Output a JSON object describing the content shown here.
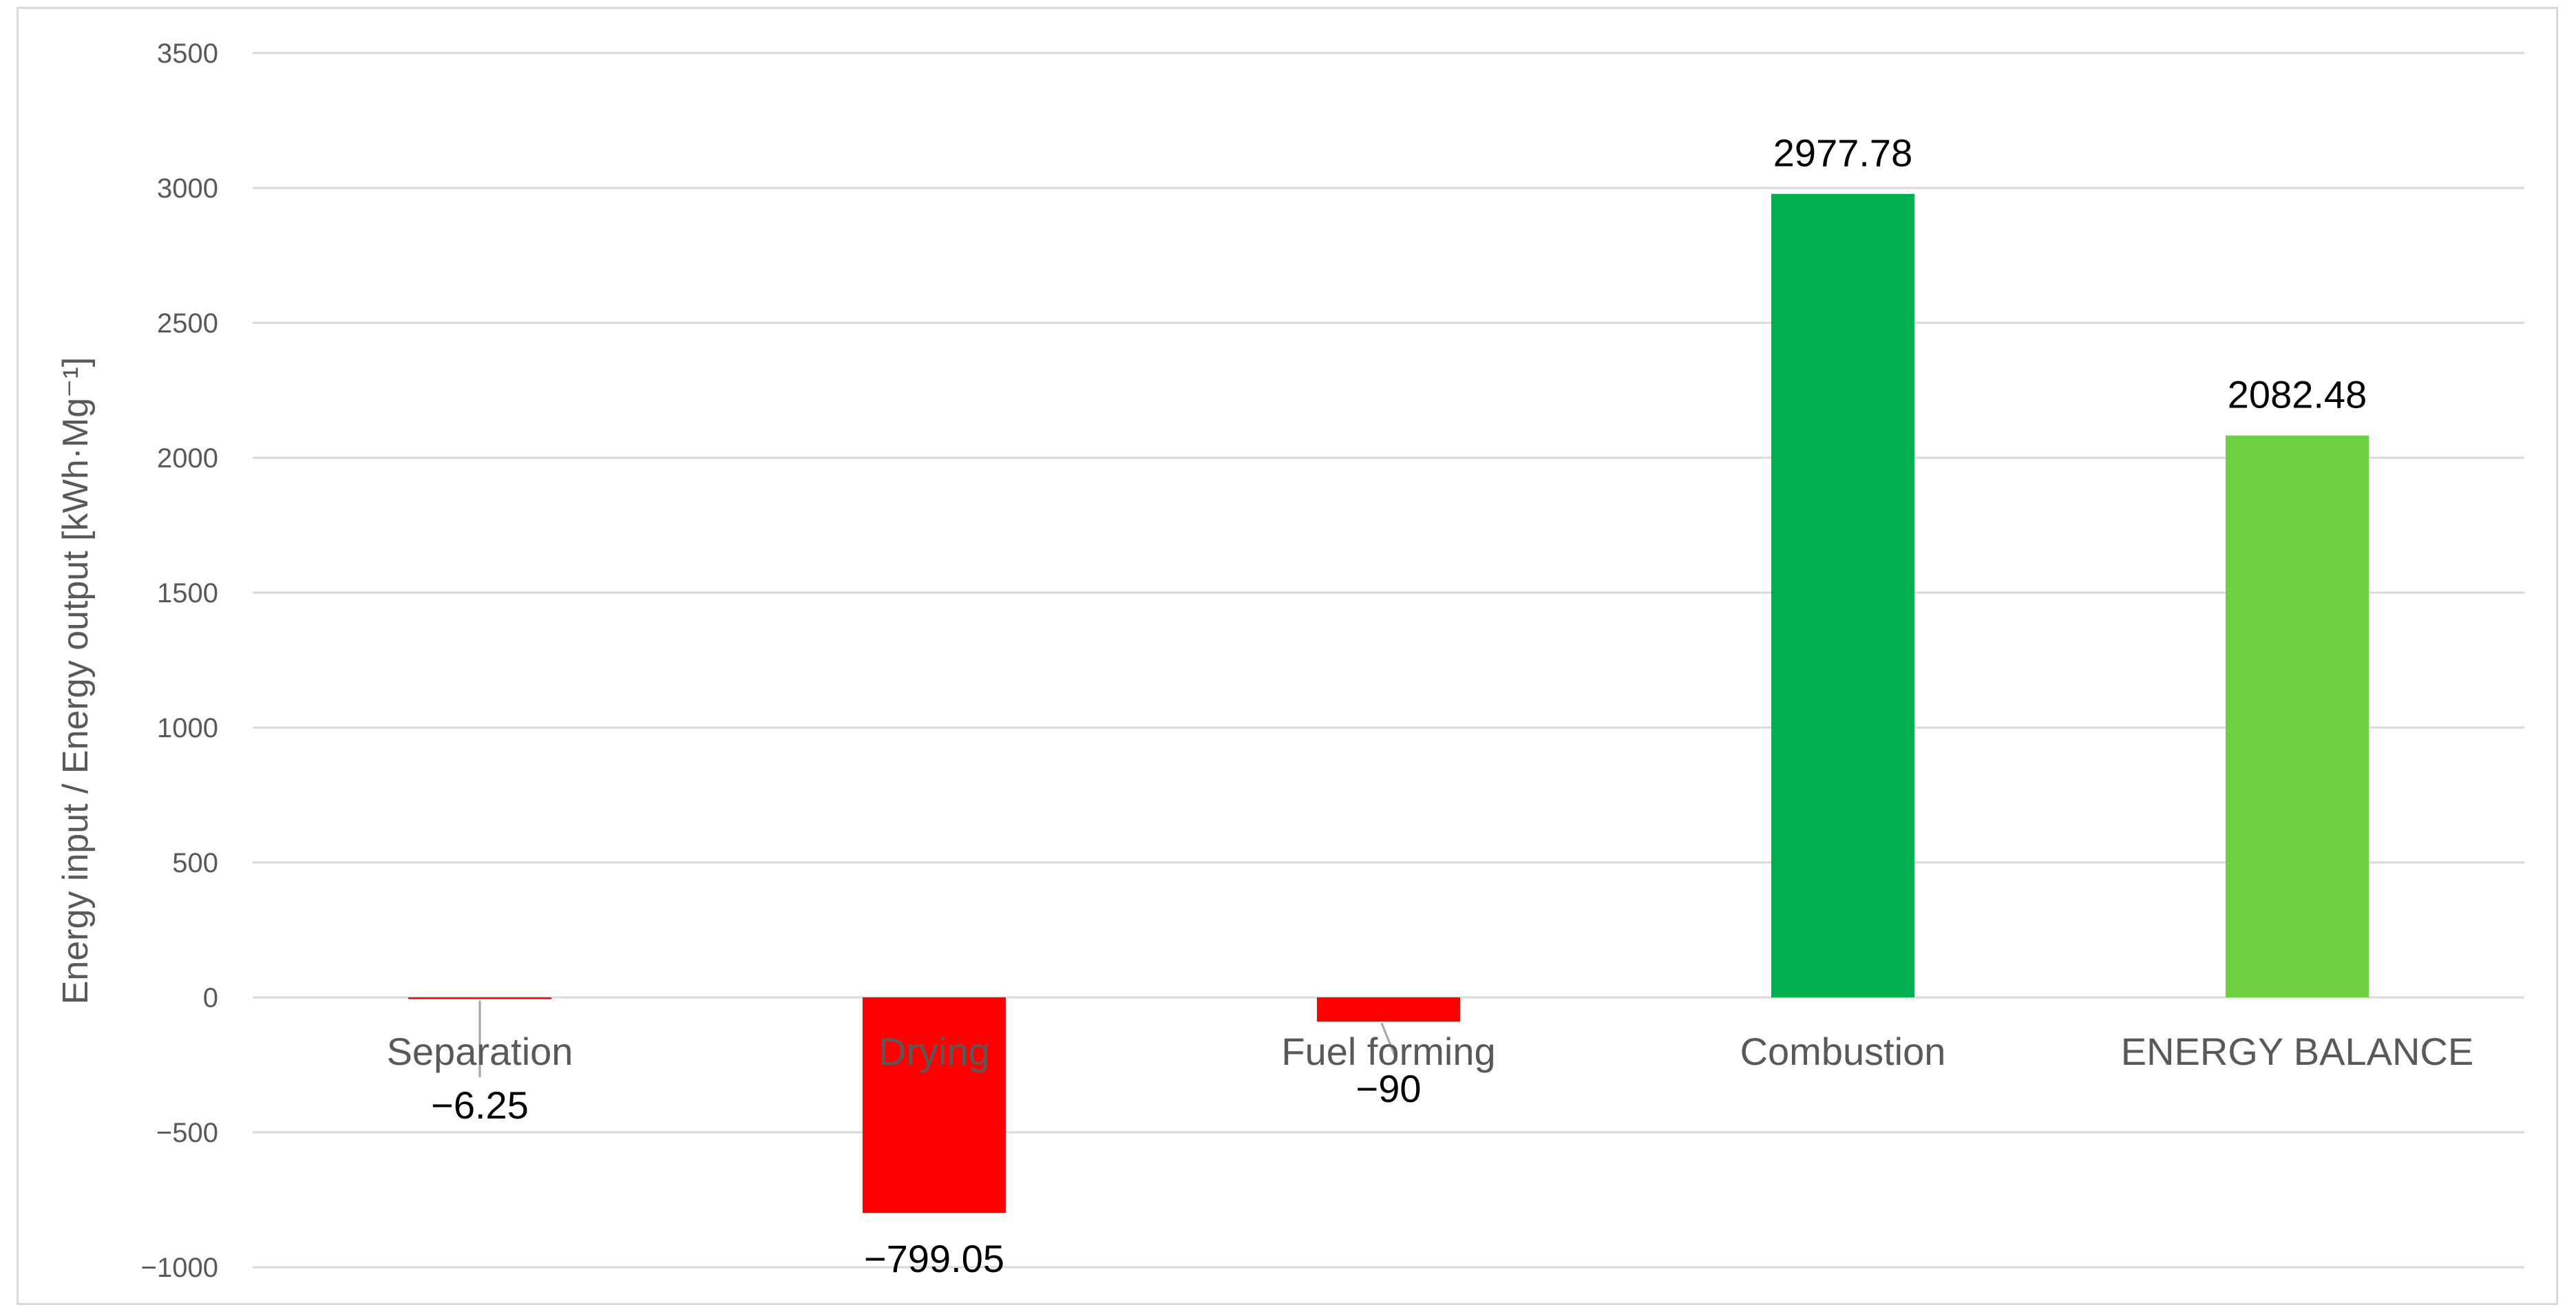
{
  "chart_data": {
    "type": "bar",
    "title": "",
    "xlabel": "",
    "ylabel": "Energy input / Energy output  [kWh·Mg⁻¹]",
    "categories": [
      "Separation",
      "Drying",
      "Fuel forming",
      "Combustion",
      "ENERGY BALANCE"
    ],
    "values": [
      -6.25,
      -799.05,
      -90,
      2977.78,
      2082.48
    ],
    "data_labels": [
      "−6.25",
      "−799.05",
      "−90",
      "2977.78",
      "2082.48"
    ],
    "bar_colors": [
      "#ff0000",
      "#ff0000",
      "#ff0000",
      "#00b050",
      "#6dd043"
    ],
    "ylim": [
      -1000,
      3500
    ],
    "yticks": [
      -1000,
      -500,
      0,
      500,
      1000,
      1500,
      2000,
      2500,
      3000,
      3500
    ],
    "ytick_labels": [
      "−1000",
      "−500",
      "0",
      "500",
      "1000",
      "1500",
      "2000",
      "2500",
      "3000",
      "3500"
    ],
    "grid": true,
    "legend": "none",
    "colors": {
      "gridline": "#d9d9d9",
      "axis_text": "#595959",
      "leader_line": "#a6a6a6"
    }
  }
}
